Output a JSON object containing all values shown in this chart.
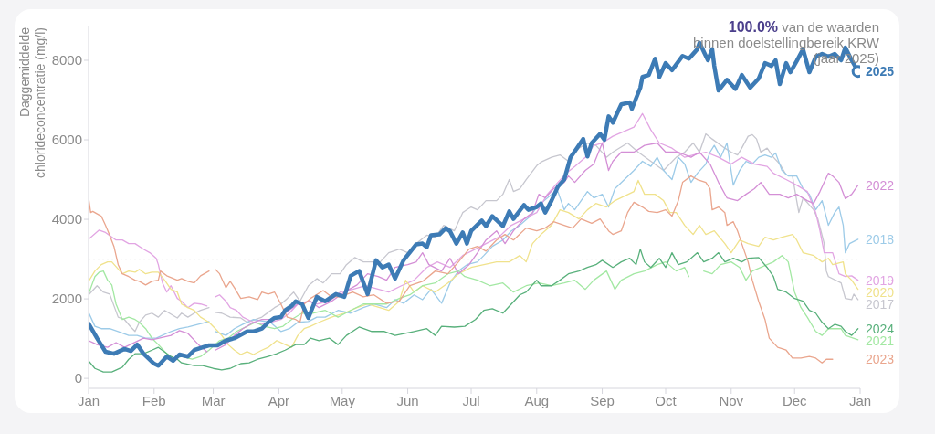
{
  "chart_data": {
    "type": "line",
    "ylabel": "Daggemiddelde chlorideconcentratie (mg/l)",
    "annotations": [
      "100.0% van de waarden binnen doelstellingbereik KRW (jaar 2025)"
    ],
    "xlim": [
      "2025-01-01",
      "2026-01-01"
    ],
    "xticks": [
      {
        "value": "2025-01-01",
        "label": "Jan"
      },
      {
        "value": "2025-02-01",
        "label": "Feb"
      },
      {
        "value": "2025-03-01",
        "label": "Mar"
      },
      {
        "value": "2025-04-01",
        "label": "Apr"
      },
      {
        "value": "2025-05-01",
        "label": "May"
      },
      {
        "value": "2025-06-01",
        "label": "Jun"
      },
      {
        "value": "2025-07-01",
        "label": "Jul"
      },
      {
        "value": "2025-08-01",
        "label": "Aug"
      },
      {
        "value": "2025-09-01",
        "label": "Sep"
      },
      {
        "value": "2025-10-01",
        "label": "Oct"
      },
      {
        "value": "2025-11-01",
        "label": "Nov"
      },
      {
        "value": "2025-12-01",
        "label": "Dec"
      },
      {
        "value": "2026-01-01",
        "label": "Jan"
      }
    ],
    "ylim": [
      -250,
      8850
    ],
    "yticks": [
      0,
      2000,
      4000,
      6000,
      8000
    ],
    "ref_lines": [
      {
        "axis": "y",
        "value": 3000,
        "color": "#9a9a9a",
        "line_style": "dotted"
      }
    ],
    "series": [
      {
        "name": "2017",
        "color": "#c7c7cf",
        "x": [
          "2025-01-01",
          "2025-01-05",
          "2025-01-08",
          "2025-01-11",
          "2025-01-15",
          "2025-01-18",
          "2025-01-21",
          "2025-01-23",
          "2025-01-25",
          "2025-01-28",
          "2025-01-31",
          "2025-02-03",
          "2025-02-06",
          "2025-02-12",
          "2025-02-14",
          "2025-02-17",
          "2025-02-20",
          "2025-02-23",
          "2025-02-27",
          "2025-02-28",
          "2025-03-02",
          "2025-03-05",
          "2025-03-09",
          "2025-03-14",
          "2025-03-17",
          "2025-03-21",
          "2025-03-24",
          "2025-03-27",
          "2025-03-30",
          "2025-04-02",
          "2025-04-05",
          "2025-04-08",
          "2025-04-11",
          "2025-04-15",
          "2025-04-19",
          "2025-04-22",
          "2025-04-26",
          "2025-04-30",
          "2025-05-03",
          "2025-05-07",
          "2025-05-11",
          "2025-05-19",
          "2025-05-23",
          "2025-05-28",
          "2025-06-01",
          "2025-06-05",
          "2025-06-10",
          "2025-06-14",
          "2025-06-18",
          "2025-06-23",
          "2025-06-27",
          "2025-07-01",
          "2025-07-04",
          "2025-07-08",
          "2025-07-13",
          "2025-07-16",
          "2025-07-19",
          "2025-07-21",
          "2025-07-24",
          "2025-07-27",
          "2025-08-01",
          "2025-08-03",
          "2025-08-08",
          "2025-08-12",
          "2025-08-16",
          "2025-08-21",
          "2025-08-25",
          "2025-08-29",
          "2025-09-03",
          "2025-09-06",
          "2025-09-13",
          "2025-09-18",
          "2025-09-24",
          "2025-09-30",
          "2025-10-06",
          "2025-10-10",
          "2025-10-14",
          "2025-10-17",
          "2025-10-20",
          "2025-10-23",
          "2025-10-29",
          "2025-11-01",
          "2025-11-04",
          "2025-11-06",
          "2025-11-09",
          "2025-11-11",
          "2025-11-13",
          "2025-11-15",
          "2025-11-18",
          "2025-11-21",
          "2025-11-24",
          "2025-11-27",
          "2025-11-30",
          "2025-12-02",
          "2025-12-03",
          "2025-12-05",
          "2025-12-10",
          "2025-12-12",
          "2025-12-15",
          "2025-12-16",
          "2025-12-17",
          "2025-12-23",
          "2025-12-25",
          "2025-12-28",
          "2025-12-29",
          "2025-12-31"
        ],
        "values": [
          2100,
          2330,
          2170,
          2120,
          1540,
          1480,
          1290,
          1180,
          1410,
          1590,
          1640,
          1540,
          1710,
          1520,
          1640,
          1540,
          1640,
          1710,
          1780,
          null,
          1660,
          1640,
          1540,
          1520,
          1410,
          1480,
          1540,
          1660,
          1780,
          1870,
          2010,
          2170,
          1940,
          2330,
          2510,
          2400,
          2630,
          2630,
          2860,
          3040,
          2930,
          2930,
          3160,
          3250,
          3160,
          3390,
          3600,
          3550,
          3850,
          3710,
          4170,
          4310,
          4240,
          4470,
          4470,
          4630,
          5000,
          4700,
          4770,
          5000,
          5350,
          5440,
          5560,
          5620,
          5460,
          5790,
          5920,
          5860,
          5560,
          5690,
          5920,
          5690,
          5460,
          5230,
          5560,
          5690,
          5920,
          5690,
          6150,
          6020,
          5790,
          5690,
          5620,
          5790,
          6090,
          6130,
          6020,
          5690,
          5790,
          5560,
          5390,
          5120,
          5090,
          4470,
          4170,
          4540,
          4240,
          4010,
          3390,
          2700,
          2560,
          2400,
          2010,
          1980,
          2120,
          1980
        ]
      },
      {
        "name": "2018",
        "color": "#9dcbe8",
        "x": [
          "2025-01-01",
          "2025-01-04",
          "2025-01-07",
          "2025-01-11",
          "2025-01-15",
          "2025-01-20",
          "2025-01-24",
          "2025-01-28",
          "2025-02-02",
          "2025-02-09",
          "2025-02-13",
          "2025-02-17",
          "2025-02-22",
          "2025-02-27",
          "2025-02-28",
          "2025-03-02",
          "2025-03-07",
          "2025-03-11",
          "2025-03-15",
          "2025-03-20",
          "2025-03-28",
          "2025-04-02",
          "2025-04-06",
          "2025-04-10",
          "2025-04-15",
          "2025-04-19",
          "2025-04-23",
          "2025-04-29",
          "2025-05-05",
          "2025-05-11",
          "2025-05-16",
          "2025-05-22",
          "2025-05-26",
          "2025-05-30",
          "2025-06-04",
          "2025-06-08",
          "2025-06-12",
          "2025-06-17",
          "2025-06-21",
          "2025-06-25",
          "2025-06-29",
          "2025-07-04",
          "2025-07-07",
          "2025-07-11",
          "2025-07-16",
          "2025-07-20",
          "2025-07-24",
          "2025-07-29",
          "2025-08-01",
          "2025-08-08",
          "2025-08-11",
          "2025-08-14",
          "2025-08-16",
          "2025-08-19",
          "2025-08-22",
          "2025-08-25",
          "2025-08-28",
          "2025-09-01",
          "2025-09-04",
          "2025-09-07",
          "2025-09-16",
          "2025-09-20",
          "2025-09-24",
          "2025-09-27",
          "2025-09-30",
          "2025-10-04",
          "2025-10-07",
          "2025-10-10",
          "2025-10-13",
          "2025-10-16",
          "2025-10-20",
          "2025-10-22",
          "2025-10-24",
          "2025-10-27",
          "2025-10-30",
          "2025-11-02",
          "2025-11-05",
          "2025-11-08",
          "2025-11-11",
          "2025-11-14",
          "2025-11-17",
          "2025-11-20",
          "2025-11-22",
          "2025-11-25",
          "2025-11-28",
          "2025-12-02",
          "2025-12-05",
          "2025-12-08",
          "2025-12-11",
          "2025-12-14",
          "2025-12-17",
          "2025-12-20",
          "2025-12-22",
          "2025-12-24",
          "2025-12-25",
          "2025-12-27",
          "2025-12-31"
        ],
        "values": [
          1660,
          1310,
          1250,
          1250,
          1180,
          1080,
          1080,
          1010,
          1010,
          1180,
          1250,
          1290,
          1360,
          1430,
          null,
          1180,
          1080,
          1250,
          1360,
          1480,
          1410,
          1180,
          1250,
          1410,
          1430,
          1540,
          1540,
          1710,
          1640,
          1780,
          1870,
          1780,
          1980,
          1890,
          2100,
          1980,
          2240,
          1890,
          2400,
          2700,
          2860,
          2930,
          3090,
          3320,
          3480,
          3710,
          3850,
          4080,
          4310,
          4630,
          4700,
          4240,
          4400,
          4240,
          4470,
          4700,
          4540,
          4630,
          4310,
          4770,
          5230,
          5460,
          5330,
          5560,
          5230,
          5000,
          5560,
          5390,
          4930,
          5160,
          5390,
          5690,
          5860,
          5560,
          5920,
          4860,
          5230,
          5460,
          5390,
          5560,
          5620,
          5560,
          5670,
          5230,
          5090,
          5090,
          4770,
          4630,
          4240,
          4470,
          3850,
          4170,
          4310,
          3850,
          3160,
          3390,
          3500
        ]
      },
      {
        "name": "2019",
        "color": "#e2a5e3",
        "x": [
          "2025-01-01",
          "2025-01-06",
          "2025-01-09",
          "2025-01-14",
          "2025-01-17",
          "2025-01-20",
          "2025-01-23",
          "2025-01-27",
          "2025-01-30",
          "2025-02-02",
          "2025-02-03",
          "2025-02-05",
          "2025-02-07",
          "2025-02-09",
          "2025-02-12",
          "2025-02-14",
          "2025-02-17",
          "2025-02-20",
          "2025-02-23",
          "2025-02-26",
          "2025-02-28",
          "2025-03-02",
          "2025-03-04",
          "2025-03-07",
          "2025-03-09",
          "2025-03-12",
          "2025-03-15",
          "2025-03-20",
          "2025-03-24",
          "2025-03-28",
          "2025-04-02",
          "2025-04-06",
          "2025-04-10",
          "2025-04-15",
          "2025-04-19",
          "2025-04-25",
          "2025-04-30",
          "2025-05-06",
          "2025-05-12",
          "2025-05-23",
          "2025-05-29",
          "2025-06-04",
          "2025-06-10",
          "2025-06-15",
          "2025-06-21",
          "2025-06-27",
          "2025-07-03",
          "2025-07-08",
          "2025-07-14",
          "2025-07-20",
          "2025-07-26",
          "2025-08-01",
          "2025-08-06",
          "2025-08-11",
          "2025-08-15",
          "2025-08-19",
          "2025-08-24",
          "2025-08-28",
          "2025-09-01",
          "2025-09-06",
          "2025-09-16",
          "2025-09-20",
          "2025-09-24",
          "2025-09-28",
          "2025-10-04",
          "2025-10-10",
          "2025-10-14",
          "2025-10-20",
          "2025-10-26",
          "2025-11-01",
          "2025-11-06",
          "2025-11-12",
          "2025-11-18",
          "2025-11-21",
          "2025-11-27",
          "2025-12-02",
          "2025-12-07",
          "2025-12-11",
          "2025-12-13",
          "2025-12-15",
          "2025-12-19",
          "2025-12-22",
          "2025-12-25",
          "2025-12-28",
          "2025-12-31"
        ],
        "values": [
          3500,
          3730,
          3670,
          3480,
          3480,
          3390,
          3390,
          3250,
          3160,
          3020,
          2860,
          2400,
          2170,
          2330,
          2010,
          1940,
          1780,
          1890,
          1870,
          1820,
          null,
          2050,
          2100,
          1940,
          1780,
          1710,
          1540,
          1410,
          1360,
          1410,
          1480,
          1640,
          1870,
          1940,
          1870,
          1940,
          2170,
          2240,
          2330,
          2170,
          2330,
          2470,
          2790,
          2930,
          2790,
          3090,
          3250,
          3390,
          3550,
          3850,
          4010,
          4170,
          4630,
          4930,
          5160,
          5330,
          5560,
          5860,
          5920,
          6090,
          6320,
          6660,
          6250,
          5920,
          5790,
          5560,
          5620,
          5690,
          5560,
          5390,
          5560,
          5390,
          5330,
          5160,
          5000,
          4860,
          4700,
          4170,
          3710,
          3160,
          3160,
          2630,
          2560,
          2580,
          2470
        ]
      },
      {
        "name": "2020",
        "color": "#f0e28c",
        "x": [
          "2025-01-01",
          "2025-01-04",
          "2025-01-07",
          "2025-01-10",
          "2025-01-12",
          "2025-01-17",
          "2025-01-20",
          "2025-01-23",
          "2025-01-25",
          "2025-01-28",
          "2025-01-31",
          "2025-02-03",
          "2025-02-06",
          "2025-02-09",
          "2025-02-12",
          "2025-02-14",
          "2025-02-17",
          "2025-02-20",
          "2025-02-23",
          "2025-02-27",
          "2025-03-02",
          "2025-03-05",
          "2025-03-08",
          "2025-03-11",
          "2025-03-14",
          "2025-03-17",
          "2025-03-20",
          "2025-03-24",
          "2025-03-27",
          "2025-03-31",
          "2025-04-04",
          "2025-04-07",
          "2025-04-10",
          "2025-04-13",
          "2025-04-16",
          "2025-04-20",
          "2025-04-26",
          "2025-05-02",
          "2025-05-08",
          "2025-05-13",
          "2025-05-23",
          "2025-05-28",
          "2025-05-31",
          "2025-06-04",
          "2025-06-08",
          "2025-06-14",
          "2025-06-20",
          "2025-06-25",
          "2025-07-01",
          "2025-07-07",
          "2025-07-13",
          "2025-07-19",
          "2025-07-24",
          "2025-07-27",
          "2025-07-30",
          "2025-08-03",
          "2025-08-08",
          "2025-08-12",
          "2025-08-16",
          "2025-08-21",
          "2025-08-25",
          "2025-08-29",
          "2025-09-03",
          "2025-09-07",
          "2025-09-16",
          "2025-09-18",
          "2025-09-21",
          "2025-09-26",
          "2025-09-30",
          "2025-10-03",
          "2025-10-06",
          "2025-10-10",
          "2025-10-14",
          "2025-10-17",
          "2025-10-20",
          "2025-10-24",
          "2025-10-29",
          "2025-11-01",
          "2025-11-05",
          "2025-11-09",
          "2025-11-14",
          "2025-11-17",
          "2025-11-21",
          "2025-11-25",
          "2025-11-30",
          "2025-12-02",
          "2025-12-05",
          "2025-12-10",
          "2025-12-14",
          "2025-12-17",
          "2025-12-19",
          "2025-12-24",
          "2025-12-25",
          "2025-12-28",
          "2025-12-31"
        ],
        "values": [
          2440,
          2700,
          2860,
          2930,
          2930,
          2630,
          2700,
          2670,
          2740,
          2630,
          2670,
          2670,
          2470,
          2240,
          2170,
          1870,
          1780,
          1710,
          1540,
          1410,
          1250,
          1080,
          850,
          710,
          600,
          670,
          600,
          710,
          780,
          950,
          850,
          780,
          1080,
          1250,
          1310,
          1410,
          1540,
          1640,
          1780,
          1870,
          1710,
          1940,
          2470,
          2170,
          2330,
          2170,
          2400,
          2630,
          2790,
          2860,
          2930,
          2930,
          3090,
          2930,
          3390,
          3620,
          3850,
          4240,
          4170,
          4010,
          4240,
          4400,
          4310,
          4470,
          4700,
          4980,
          4630,
          4630,
          4470,
          4170,
          4170,
          3850,
          3620,
          3850,
          3620,
          3710,
          3390,
          3160,
          3480,
          3390,
          3320,
          3550,
          3480,
          3550,
          3620,
          3480,
          3160,
          3090,
          2930,
          3020,
          2860,
          2930,
          2630,
          2470,
          2240
        ]
      },
      {
        "name": "2021",
        "color": "#a3e8a3",
        "x": [
          "2025-01-01",
          "2025-01-04",
          "2025-01-06",
          "2025-01-08",
          "2025-01-10",
          "2025-01-12",
          "2025-01-14",
          "2025-01-17",
          "2025-01-20",
          "2025-01-23",
          "2025-01-25",
          "2025-01-28",
          "2025-01-31",
          "2025-02-03",
          "2025-02-07",
          "2025-02-10",
          "2025-02-14",
          "2025-02-19",
          "2025-02-23",
          "2025-02-27",
          "2025-03-04",
          "2025-03-08",
          "2025-03-12",
          "2025-03-17",
          "2025-03-21",
          "2025-03-25",
          "2025-03-30",
          "2025-04-03",
          "2025-04-07",
          "2025-04-12",
          "2025-04-17",
          "2025-04-23",
          "2025-04-29",
          "2025-05-05",
          "2025-05-11",
          "2025-05-22",
          "2025-05-28",
          "2025-06-02",
          "2025-06-08",
          "2025-06-14",
          "2025-06-20",
          "2025-06-25",
          "2025-06-28",
          "2025-07-04",
          "2025-07-10",
          "2025-07-16",
          "2025-07-21",
          "2025-07-27",
          "2025-08-02",
          "2025-08-08",
          "2025-08-14",
          "2025-08-19",
          "2025-08-24",
          "2025-08-28",
          "2025-09-03",
          "2025-09-07",
          "2025-09-10",
          "2025-09-16",
          "2025-09-21",
          "2025-09-27",
          "2025-10-01",
          "2025-10-06",
          "2025-10-10",
          "2025-10-12",
          "2025-10-15",
          "2025-10-19",
          "2025-10-23",
          "2025-10-27",
          "2025-11-01",
          "2025-11-05",
          "2025-11-08",
          "2025-11-11",
          "2025-11-15",
          "2025-11-21",
          "2025-11-25",
          "2025-11-28",
          "2025-12-01",
          "2025-12-04",
          "2025-12-07",
          "2025-12-11",
          "2025-12-14",
          "2025-12-17",
          "2025-12-23",
          "2025-12-25",
          "2025-12-31"
        ],
        "values": [
          2120,
          2560,
          2670,
          2700,
          2470,
          2350,
          1870,
          1480,
          1540,
          1480,
          1410,
          1250,
          1010,
          850,
          620,
          480,
          550,
          480,
          550,
          710,
          950,
          1010,
          1180,
          1310,
          1410,
          1310,
          1250,
          1310,
          1480,
          1640,
          1640,
          1710,
          1540,
          1710,
          1870,
          1870,
          2010,
          2100,
          2330,
          2400,
          2630,
          2700,
          2560,
          2470,
          2330,
          2400,
          2170,
          2330,
          2400,
          2330,
          2400,
          2470,
          2240,
          2470,
          2700,
          2240,
          2470,
          2630,
          2700,
          2860,
          2930,
          2700,
          2790,
          2560,
          null,
          2700,
          2630,
          2860,
          2930,
          2790,
          2470,
          2700,
          2790,
          2930,
          3090,
          2930,
          2170,
          1780,
          1540,
          1180,
          1080,
          1250,
          1250,
          1080,
          970
        ]
      },
      {
        "name": "2022",
        "color": "#d48fd6",
        "x": [
          "2025-01-01",
          "2025-01-05",
          "2025-01-10",
          "2025-01-14",
          "2025-01-18",
          "2025-01-27",
          "2025-01-31",
          "2025-02-09",
          "2025-02-13",
          "2025-02-17",
          "2025-02-22",
          "2025-02-26",
          "2025-02-28",
          "2025-03-02",
          "2025-03-07",
          "2025-03-11",
          "2025-03-15",
          "2025-03-20",
          "2025-03-24",
          "2025-03-30",
          "2025-04-04",
          "2025-04-10",
          "2025-04-16",
          "2025-04-20",
          "2025-04-26",
          "2025-05-02",
          "2025-05-08",
          "2025-05-13",
          "2025-05-18",
          "2025-05-22",
          "2025-05-26",
          "2025-06-01",
          "2025-06-05",
          "2025-06-08",
          "2025-06-11",
          "2025-06-17",
          "2025-06-21",
          "2025-06-25",
          "2025-06-30",
          "2025-07-04",
          "2025-07-08",
          "2025-07-13",
          "2025-07-17",
          "2025-07-21",
          "2025-07-26",
          "2025-07-30",
          "2025-08-02",
          "2025-08-05",
          "2025-08-09",
          "2025-08-14",
          "2025-08-16",
          "2025-08-19",
          "2025-08-24",
          "2025-08-28",
          "2025-09-01",
          "2025-09-04",
          "2025-09-06",
          "2025-09-10",
          "2025-09-16",
          "2025-09-21",
          "2025-09-27",
          "2025-10-01",
          "2025-10-07",
          "2025-10-13",
          "2025-10-17",
          "2025-10-22",
          "2025-10-26",
          "2025-10-30",
          "2025-11-04",
          "2025-11-08",
          "2025-11-12",
          "2025-11-15",
          "2025-11-19",
          "2025-11-24",
          "2025-11-28",
          "2025-12-02",
          "2025-12-07",
          "2025-12-10",
          "2025-12-13",
          "2025-12-17",
          "2025-12-19",
          "2025-12-22",
          "2025-12-25",
          "2025-12-28",
          "2025-12-31"
        ],
        "values": [
          950,
          850,
          780,
          900,
          780,
          1010,
          970,
          1080,
          1200,
          1130,
          850,
          670,
          null,
          710,
          850,
          1080,
          1250,
          1410,
          1480,
          1480,
          1640,
          1870,
          1940,
          1780,
          1940,
          2170,
          2350,
          2630,
          2560,
          2470,
          2790,
          2860,
          2930,
          3160,
          2860,
          2700,
          3020,
          2630,
          2860,
          3160,
          3480,
          3710,
          3390,
          3710,
          4010,
          4170,
          4630,
          4540,
          4770,
          4930,
          5090,
          4930,
          5230,
          5390,
          5920,
          5230,
          5460,
          5690,
          5690,
          5860,
          5920,
          5690,
          5690,
          5560,
          5690,
          5390,
          4930,
          4540,
          4470,
          4630,
          4770,
          4930,
          4630,
          4630,
          4540,
          4630,
          4470,
          4400,
          4700,
          5160,
          5090,
          4930,
          4520,
          4630,
          4860
        ]
      },
      {
        "name": "2023",
        "color": "#eaa68e",
        "x": [
          "2025-01-01",
          "2025-01-02",
          "2025-01-03",
          "2025-01-07",
          "2025-01-09",
          "2025-01-11",
          "2025-01-13",
          "2025-01-15",
          "2025-01-17",
          "2025-01-20",
          "2025-01-23",
          "2025-01-25",
          "2025-01-28",
          "2025-01-31",
          "2025-02-03",
          "2025-02-04",
          "2025-02-07",
          "2025-02-12",
          "2025-02-14",
          "2025-02-17",
          "2025-02-20",
          "2025-02-23",
          "2025-02-27",
          "2025-02-28",
          "2025-03-02",
          "2025-03-04",
          "2025-03-07",
          "2025-03-09",
          "2025-03-11",
          "2025-03-14",
          "2025-03-18",
          "2025-03-22",
          "2025-03-24",
          "2025-03-27",
          "2025-03-30",
          "2025-04-02",
          "2025-04-05",
          "2025-04-09",
          "2025-04-11",
          "2025-04-13",
          "2025-04-16",
          "2025-04-22",
          "2025-04-26",
          "2025-04-30",
          "2025-05-06",
          "2025-05-11",
          "2025-05-16",
          "2025-05-22",
          "2025-05-28",
          "2025-06-02",
          "2025-06-08",
          "2025-06-14",
          "2025-06-20",
          "2025-06-25",
          "2025-06-30",
          "2025-07-04",
          "2025-07-08",
          "2025-07-13",
          "2025-07-17",
          "2025-07-21",
          "2025-07-27",
          "2025-08-01",
          "2025-08-05",
          "2025-08-09",
          "2025-08-14",
          "2025-08-18",
          "2025-08-22",
          "2025-08-27",
          "2025-08-31",
          "2025-09-04",
          "2025-09-06",
          "2025-09-10",
          "2025-09-13",
          "2025-09-16",
          "2025-09-20",
          "2025-09-23",
          "2025-09-27",
          "2025-10-01",
          "2025-10-04",
          "2025-10-07",
          "2025-10-09",
          "2025-10-13",
          "2025-10-16",
          "2025-10-20",
          "2025-10-22",
          "2025-10-23",
          "2025-10-26",
          "2025-10-29",
          "2025-10-30",
          "2025-11-02",
          "2025-11-04",
          "2025-11-06",
          "2025-11-09",
          "2025-11-11",
          "2025-11-14",
          "2025-11-17",
          "2025-11-19",
          "2025-11-23",
          "2025-11-27",
          "2025-11-30",
          "2025-12-04",
          "2025-12-08",
          "2025-12-11",
          "2025-12-14",
          "2025-12-16",
          "2025-12-19"
        ],
        "values": [
          4540,
          4170,
          4200,
          4080,
          3850,
          3600,
          3320,
          2860,
          2630,
          2560,
          2470,
          2440,
          2350,
          2440,
          2470,
          2700,
          2580,
          2470,
          2510,
          2440,
          2400,
          2580,
          2700,
          null,
          2740,
          2630,
          2280,
          2440,
          2280,
          2010,
          2050,
          1980,
          2170,
          2120,
          2170,
          1870,
          1540,
          1480,
          1410,
          1870,
          2010,
          2210,
          2050,
          2050,
          2170,
          2050,
          2100,
          1890,
          1940,
          2330,
          2440,
          2700,
          2630,
          2930,
          3250,
          3320,
          3200,
          3480,
          3620,
          3480,
          3780,
          3710,
          3780,
          3940,
          3850,
          3780,
          4010,
          3900,
          4010,
          3710,
          3620,
          3710,
          4170,
          4430,
          4310,
          4200,
          4170,
          4240,
          4080,
          4470,
          4930,
          5090,
          5000,
          4930,
          4770,
          4240,
          4310,
          4170,
          3850,
          3940,
          3710,
          3390,
          2930,
          2470,
          1940,
          1480,
          1010,
          780,
          710,
          510,
          510,
          550,
          510,
          390,
          480,
          480
        ]
      },
      {
        "name": "2024",
        "color": "#58b07b",
        "x": [
          "2025-01-01",
          "2025-01-04",
          "2025-01-08",
          "2025-01-12",
          "2025-01-17",
          "2025-01-20",
          "2025-01-23",
          "2025-01-27",
          "2025-01-31",
          "2025-02-03",
          "2025-02-09",
          "2025-02-12",
          "2025-02-14",
          "2025-02-20",
          "2025-02-24",
          "2025-03-01",
          "2025-03-05",
          "2025-03-09",
          "2025-03-14",
          "2025-03-18",
          "2025-03-22",
          "2025-03-27",
          "2025-03-31",
          "2025-04-04",
          "2025-04-09",
          "2025-04-13",
          "2025-04-16",
          "2025-04-20",
          "2025-04-25",
          "2025-04-29",
          "2025-05-03",
          "2025-05-09",
          "2025-05-15",
          "2025-05-21",
          "2025-05-26",
          "2025-06-04",
          "2025-06-10",
          "2025-06-14",
          "2025-06-17",
          "2025-06-23",
          "2025-06-28",
          "2025-07-03",
          "2025-07-07",
          "2025-07-11",
          "2025-07-16",
          "2025-07-20",
          "2025-07-24",
          "2025-07-27",
          "2025-08-01",
          "2025-08-03",
          "2025-08-08",
          "2025-08-12",
          "2025-08-16",
          "2025-08-21",
          "2025-08-25",
          "2025-08-29",
          "2025-09-01",
          "2025-09-06",
          "2025-09-10",
          "2025-09-14",
          "2025-09-17",
          "2025-09-19",
          "2025-09-21",
          "2025-09-24",
          "2025-09-28",
          "2025-10-01",
          "2025-10-04",
          "2025-10-07",
          "2025-10-11",
          "2025-10-16",
          "2025-10-19",
          "2025-10-23",
          "2025-10-26",
          "2025-10-29",
          "2025-11-02",
          "2025-11-06",
          "2025-11-09",
          "2025-11-14",
          "2025-11-18",
          "2025-11-21",
          "2025-11-23",
          "2025-11-27",
          "2025-12-01",
          "2025-12-05",
          "2025-12-08",
          "2025-12-11",
          "2025-12-14",
          "2025-12-17",
          "2025-12-20",
          "2025-12-23",
          "2025-12-25",
          "2025-12-28",
          "2025-12-31"
        ],
        "values": [
          440,
          250,
          160,
          160,
          280,
          480,
          620,
          620,
          710,
          780,
          550,
          480,
          390,
          320,
          320,
          250,
          210,
          250,
          370,
          390,
          480,
          550,
          620,
          710,
          850,
          850,
          1010,
          950,
          1010,
          850,
          1080,
          1290,
          1180,
          1180,
          1080,
          1180,
          1250,
          1080,
          1310,
          1290,
          1310,
          1480,
          1710,
          1750,
          1640,
          1870,
          2100,
          2170,
          2470,
          2330,
          2330,
          2470,
          2630,
          2700,
          2790,
          2860,
          2970,
          2790,
          2930,
          3020,
          2860,
          3250,
          2930,
          2790,
          3020,
          2790,
          3160,
          2860,
          2930,
          3160,
          2930,
          3020,
          3160,
          2930,
          3020,
          2930,
          3020,
          3040,
          2790,
          2560,
          2240,
          2170,
          2010,
          1940,
          1710,
          1640,
          1410,
          1250,
          1360,
          1310,
          1180,
          1080,
          1250
        ]
      },
      {
        "name": "2025",
        "color": "#3d7bb5",
        "x": [
          "2025-01-01",
          "2025-01-05",
          "2025-01-09",
          "2025-01-13",
          "2025-01-18",
          "2025-01-21",
          "2025-01-24",
          "2025-01-27",
          "2025-02-01",
          "2025-02-03",
          "2025-02-07",
          "2025-02-10",
          "2025-02-13",
          "2025-02-17",
          "2025-02-20",
          "2025-02-24",
          "2025-02-27",
          "2025-03-03",
          "2025-03-07",
          "2025-03-11",
          "2025-03-17",
          "2025-03-20",
          "2025-03-24",
          "2025-03-27",
          "2025-03-30",
          "2025-04-02",
          "2025-04-04",
          "2025-04-07",
          "2025-04-09",
          "2025-04-12",
          "2025-04-15",
          "2025-04-19",
          "2025-04-23",
          "2025-04-28",
          "2025-05-02",
          "2025-05-05",
          "2025-05-09",
          "2025-05-13",
          "2025-05-17",
          "2025-05-20",
          "2025-05-23",
          "2025-05-26",
          "2025-05-30",
          "2025-06-05",
          "2025-06-08",
          "2025-06-10",
          "2025-06-12",
          "2025-06-16",
          "2025-06-19",
          "2025-06-21",
          "2025-06-24",
          "2025-06-27",
          "2025-06-29",
          "2025-07-01",
          "2025-07-06",
          "2025-07-08",
          "2025-07-11",
          "2025-07-16",
          "2025-07-19",
          "2025-07-21",
          "2025-07-26",
          "2025-07-28",
          "2025-08-01",
          "2025-08-03",
          "2025-08-05",
          "2025-08-08",
          "2025-08-11",
          "2025-08-14",
          "2025-08-17",
          "2025-08-20",
          "2025-08-23",
          "2025-08-25",
          "2025-08-27",
          "2025-08-31",
          "2025-09-02",
          "2025-09-04",
          "2025-09-06",
          "2025-09-10",
          "2025-09-14",
          "2025-09-15",
          "2025-09-19",
          "2025-09-20",
          "2025-09-23",
          "2025-09-26",
          "2025-09-28",
          "2025-10-01",
          "2025-10-04",
          "2025-10-09",
          "2025-10-12",
          "2025-10-16",
          "2025-10-17",
          "2025-10-21",
          "2025-10-23",
          "2025-10-24",
          "2025-10-26",
          "2025-10-30",
          "2025-11-03",
          "2025-11-06",
          "2025-11-10",
          "2025-11-14",
          "2025-11-17",
          "2025-11-20",
          "2025-11-22",
          "2025-11-24",
          "2025-11-27",
          "2025-11-29",
          "2025-12-02",
          "2025-12-05",
          "2025-12-08",
          "2025-12-11",
          "2025-12-14",
          "2025-12-17",
          "2025-12-20",
          "2025-12-23",
          "2025-12-25",
          "2025-12-28",
          "2025-12-31"
        ],
        "values": [
          1380,
          1010,
          670,
          620,
          740,
          690,
          850,
          620,
          370,
          320,
          550,
          440,
          600,
          550,
          710,
          780,
          830,
          830,
          950,
          1010,
          1180,
          1180,
          1250,
          1410,
          1520,
          1540,
          1710,
          1820,
          1940,
          1870,
          1520,
          2050,
          1940,
          2120,
          2050,
          2580,
          2700,
          2120,
          2970,
          2790,
          2860,
          2510,
          2970,
          3370,
          3390,
          3300,
          3600,
          3620,
          3780,
          3700,
          3390,
          3670,
          3390,
          3710,
          3970,
          3830,
          4080,
          3830,
          4200,
          4010,
          4360,
          4240,
          4310,
          4400,
          4170,
          4470,
          4820,
          5000,
          5560,
          5790,
          6020,
          5580,
          5920,
          6150,
          6000,
          6590,
          6430,
          6890,
          6940,
          6780,
          7310,
          7580,
          7630,
          8040,
          7580,
          7930,
          7750,
          8110,
          8040,
          8280,
          8440,
          8000,
          8280,
          7860,
          7240,
          7510,
          7280,
          7630,
          7310,
          7540,
          7930,
          7860,
          8000,
          7400,
          7930,
          7700,
          7980,
          8280,
          7700,
          8090,
          8160,
          8090,
          8160,
          8000,
          8320,
          8000,
          7720
        ]
      },
      {
        "type": "scatter",
        "color": "#3d7bb5",
        "marker": "circle",
        "x": [
          "2025-12-31"
        ],
        "values": [
          7720
        ]
      }
    ]
  }
}
